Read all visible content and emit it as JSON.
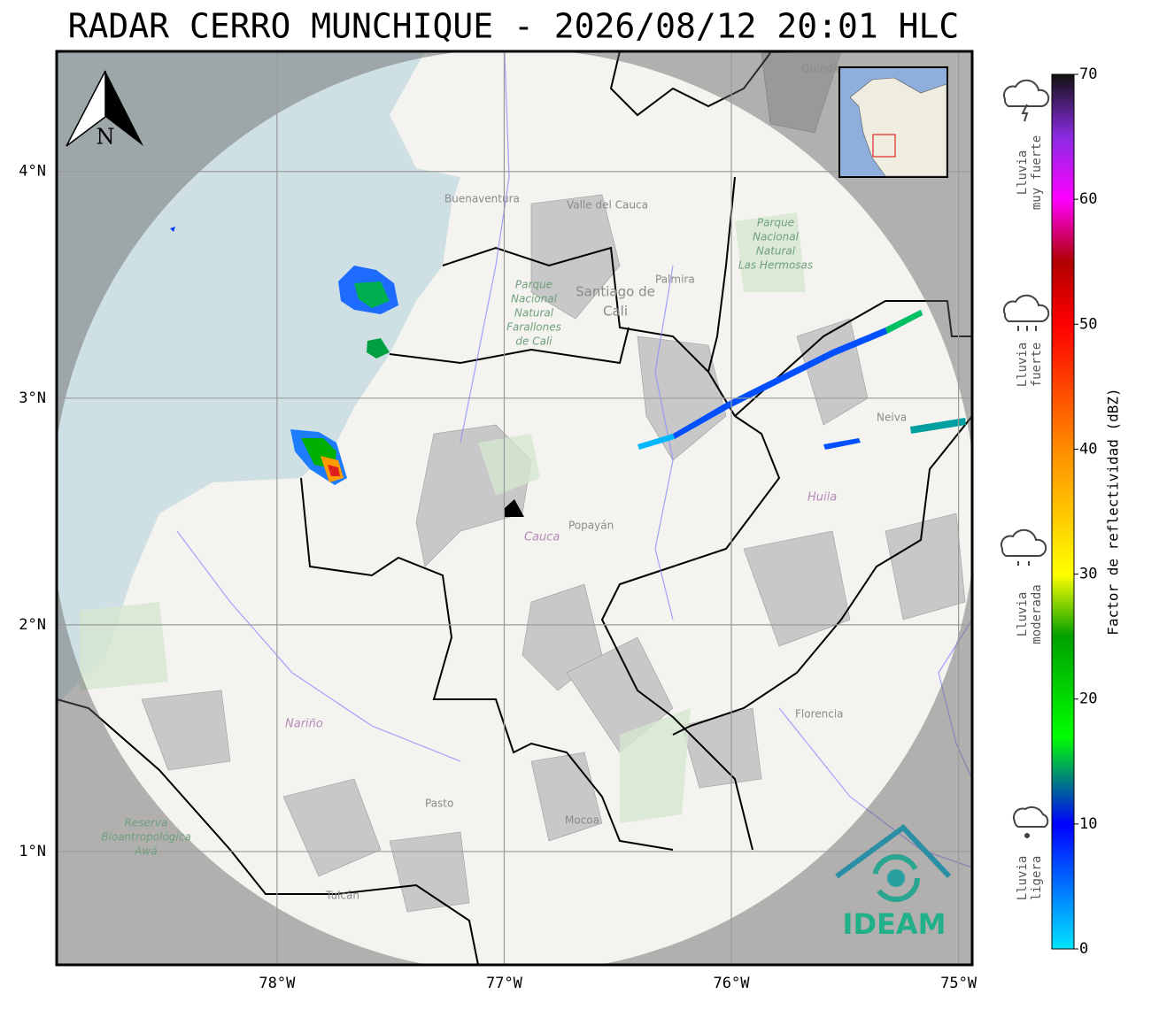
{
  "title": "RADAR CERRO MUNCHIQUE - 2026/08/12 20:01 HLC",
  "map": {
    "xlim": [
      -78.97,
      -74.94
    ],
    "ylim": [
      0.5,
      4.53
    ],
    "xticks": [
      {
        "value": -78,
        "label": "78°W"
      },
      {
        "value": -77,
        "label": "77°W"
      },
      {
        "value": -76,
        "label": "76°W"
      },
      {
        "value": -75,
        "label": "75°W"
      }
    ],
    "yticks": [
      {
        "value": 1,
        "label": "1°N"
      },
      {
        "value": 2,
        "label": "2°N"
      },
      {
        "value": 3,
        "label": "3°N"
      },
      {
        "value": 4,
        "label": "4°N"
      }
    ],
    "grid": true,
    "north": "N",
    "places": [
      "Quindío",
      "Buenaventura",
      "Valle del Cauca",
      "Santiago de",
      "Cali",
      "Palmira",
      "Neiva",
      "Huila",
      "Cauca",
      "Popayán",
      "Nariño",
      "Pasto",
      "Mocoa",
      "Florencia",
      "Tulcán"
    ],
    "parks": [
      [
        "Parque",
        "Nacional",
        "Natural",
        "Farallones",
        "de Cali"
      ],
      [
        "Parque",
        "Nacional",
        "Natural",
        "Las Hermosas"
      ],
      [
        "Reserva",
        "Bioantropológica",
        "Awá"
      ]
    ],
    "logo": "IDEAM"
  },
  "colorbar": {
    "label": "Factor de reflectividad (dBZ)",
    "lim": [
      0,
      70
    ],
    "ticks": [
      0,
      10,
      20,
      30,
      40,
      50,
      60,
      70
    ],
    "stops": [
      {
        "value": 0,
        "color": "#00e5ff"
      },
      {
        "value": 10,
        "color": "#0000ff"
      },
      {
        "value": 17,
        "color": "#00ff00"
      },
      {
        "value": 25,
        "color": "#00a000"
      },
      {
        "value": 30,
        "color": "#ffff00"
      },
      {
        "value": 40,
        "color": "#ff8c00"
      },
      {
        "value": 50,
        "color": "#ff0000"
      },
      {
        "value": 55,
        "color": "#b00000"
      },
      {
        "value": 60,
        "color": "#ff00ff"
      },
      {
        "value": 65,
        "color": "#8a2be2"
      },
      {
        "value": 70,
        "color": "#111111"
      }
    ]
  },
  "legend": [
    [
      "Lluvia",
      "muy fuerte"
    ],
    [
      "Lluvia",
      "fuerte"
    ],
    [
      "Lluvia",
      "moderada"
    ],
    [
      "Lluvia",
      "ligera"
    ]
  ]
}
